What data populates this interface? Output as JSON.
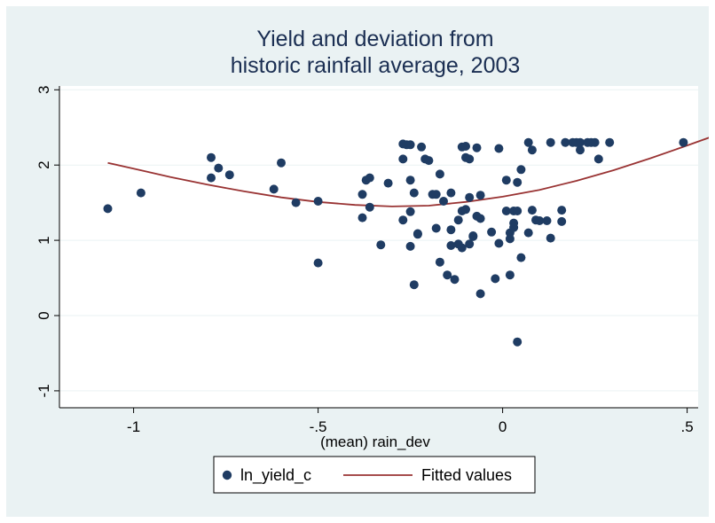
{
  "chart_data": {
    "type": "scatter",
    "title": [
      "Yield and deviation from",
      "historic rainfall average, 2003"
    ],
    "xlabel": "(mean) rain_dev",
    "ylabel": "",
    "xlim": [
      -1.1,
      0.6
    ],
    "ylim": [
      -1.1,
      3.1
    ],
    "x_ticks": [
      -1,
      -0.5,
      0,
      0.5
    ],
    "x_tick_labels": [
      "-1",
      "-.5",
      "0",
      ".5"
    ],
    "y_ticks": [
      -1,
      0,
      1,
      2,
      3
    ],
    "y_tick_labels": [
      "-1",
      "0",
      "1",
      "2",
      "3"
    ],
    "grid": "horizontal",
    "legend_position": "bottom",
    "colors": {
      "points": "#1f3c63",
      "fit": "#993333",
      "frame": "#eaf2f3"
    },
    "series": [
      {
        "name": "ln_yield_c",
        "kind": "scatter",
        "points": [
          [
            -1.07,
            1.42
          ],
          [
            -0.98,
            1.63
          ],
          [
            -0.79,
            2.1
          ],
          [
            -0.79,
            1.83
          ],
          [
            -0.77,
            1.96
          ],
          [
            -0.74,
            1.87
          ],
          [
            -0.62,
            1.68
          ],
          [
            -0.6,
            2.03
          ],
          [
            -0.56,
            1.5
          ],
          [
            -0.5,
            1.52
          ],
          [
            -0.5,
            0.7
          ],
          [
            -0.38,
            1.3
          ],
          [
            -0.38,
            1.61
          ],
          [
            -0.37,
            1.8
          ],
          [
            -0.36,
            1.83
          ],
          [
            -0.36,
            1.44
          ],
          [
            -0.33,
            0.94
          ],
          [
            -0.31,
            1.76
          ],
          [
            -0.27,
            2.28
          ],
          [
            -0.27,
            2.08
          ],
          [
            -0.27,
            1.27
          ],
          [
            -0.26,
            2.27
          ],
          [
            -0.25,
            2.27
          ],
          [
            -0.25,
            1.8
          ],
          [
            -0.25,
            1.38
          ],
          [
            -0.25,
            0.92
          ],
          [
            -0.24,
            1.63
          ],
          [
            -0.24,
            0.41
          ],
          [
            -0.23,
            1.08
          ],
          [
            -0.23,
            1.09
          ],
          [
            -0.22,
            2.24
          ],
          [
            -0.21,
            2.08
          ],
          [
            -0.2,
            2.06
          ],
          [
            -0.19,
            1.61
          ],
          [
            -0.18,
            1.61
          ],
          [
            -0.18,
            1.16
          ],
          [
            -0.17,
            1.88
          ],
          [
            -0.17,
            0.71
          ],
          [
            -0.16,
            1.52
          ],
          [
            -0.15,
            0.54
          ],
          [
            -0.14,
            1.63
          ],
          [
            -0.14,
            1.14
          ],
          [
            -0.14,
            0.93
          ],
          [
            -0.13,
            0.48
          ],
          [
            -0.12,
            1.27
          ],
          [
            -0.12,
            0.95
          ],
          [
            -0.11,
            0.9
          ],
          [
            -0.11,
            1.39
          ],
          [
            -0.11,
            2.24
          ],
          [
            -0.1,
            2.25
          ],
          [
            -0.1,
            1.41
          ],
          [
            -0.1,
            2.1
          ],
          [
            -0.09,
            2.08
          ],
          [
            -0.09,
            1.57
          ],
          [
            -0.09,
            0.95
          ],
          [
            -0.08,
            1.05
          ],
          [
            -0.08,
            1.06
          ],
          [
            -0.07,
            2.23
          ],
          [
            -0.07,
            1.32
          ],
          [
            -0.06,
            1.29
          ],
          [
            -0.06,
            1.6
          ],
          [
            -0.06,
            0.29
          ],
          [
            -0.03,
            1.11
          ],
          [
            -0.02,
            0.49
          ],
          [
            -0.01,
            2.22
          ],
          [
            -0.01,
            0.96
          ],
          [
            0.01,
            1.8
          ],
          [
            0.01,
            1.39
          ],
          [
            0.02,
            1.02
          ],
          [
            0.02,
            1.1
          ],
          [
            0.02,
            0.54
          ],
          [
            0.03,
            1.39
          ],
          [
            0.03,
            1.23
          ],
          [
            0.03,
            1.17
          ],
          [
            0.04,
            1.39
          ],
          [
            0.04,
            1.77
          ],
          [
            0.04,
            -0.35
          ],
          [
            0.05,
            1.94
          ],
          [
            0.05,
            0.77
          ],
          [
            0.07,
            2.3
          ],
          [
            0.07,
            1.1
          ],
          [
            0.08,
            2.2
          ],
          [
            0.08,
            1.4
          ],
          [
            0.09,
            1.27
          ],
          [
            0.1,
            1.26
          ],
          [
            0.12,
            1.26
          ],
          [
            0.13,
            1.03
          ],
          [
            0.13,
            2.3
          ],
          [
            0.16,
            1.4
          ],
          [
            0.16,
            1.25
          ],
          [
            0.17,
            2.3
          ],
          [
            0.19,
            2.3
          ],
          [
            0.2,
            2.3
          ],
          [
            0.21,
            2.2
          ],
          [
            0.21,
            2.3
          ],
          [
            0.23,
            2.3
          ],
          [
            0.24,
            2.3
          ],
          [
            0.25,
            2.3
          ],
          [
            0.26,
            2.08
          ],
          [
            0.29,
            2.3
          ],
          [
            0.49,
            2.3
          ],
          [
            0.58,
            2.3
          ]
        ]
      },
      {
        "name": "Fitted values",
        "kind": "line",
        "points": [
          [
            -1.07,
            2.03
          ],
          [
            -0.98,
            1.93
          ],
          [
            -0.9,
            1.84
          ],
          [
            -0.8,
            1.74
          ],
          [
            -0.7,
            1.65
          ],
          [
            -0.6,
            1.57
          ],
          [
            -0.5,
            1.51
          ],
          [
            -0.4,
            1.47
          ],
          [
            -0.3,
            1.45
          ],
          [
            -0.2,
            1.46
          ],
          [
            -0.1,
            1.51
          ],
          [
            0.0,
            1.58
          ],
          [
            0.1,
            1.67
          ],
          [
            0.2,
            1.79
          ],
          [
            0.3,
            1.93
          ],
          [
            0.4,
            2.09
          ],
          [
            0.5,
            2.26
          ],
          [
            0.58,
            2.4
          ]
        ]
      }
    ]
  }
}
